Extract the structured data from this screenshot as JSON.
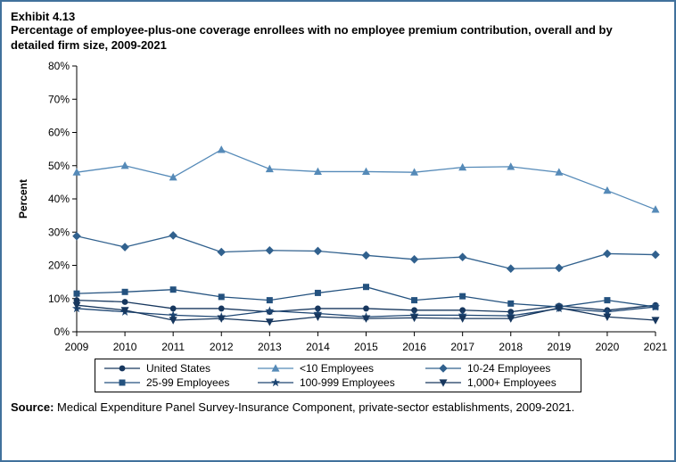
{
  "exhibit_label": "Exhibit 4.13",
  "chart_data": {
    "type": "line",
    "title": "Percentage of employee-plus-one coverage enrollees with no employee premium contribution, overall and by detailed firm size, 2009-2021",
    "x": [
      2009,
      2010,
      2011,
      2012,
      2013,
      2014,
      2015,
      2016,
      2017,
      2018,
      2019,
      2020,
      2021
    ],
    "xlabel": "",
    "ylabel": "Percent",
    "ylim": [
      0,
      80
    ],
    "ytick_step": 10,
    "ytick_format": "percent",
    "grid": false,
    "legend_position": "bottom",
    "series": [
      {
        "name": "United States",
        "marker": "circle",
        "color": "#17375e",
        "values": [
          9.5,
          9.0,
          7.0,
          7.0,
          6.0,
          7.0,
          7.0,
          6.5,
          6.5,
          6.0,
          7.8,
          6.5,
          8.0
        ]
      },
      {
        "name": "<10 Employees",
        "marker": "triangle-up",
        "color": "#558ab8",
        "values": [
          48.0,
          50.0,
          46.5,
          54.8,
          49.0,
          48.2,
          48.2,
          48.0,
          49.5,
          49.7,
          48.0,
          42.5,
          36.8
        ]
      },
      {
        "name": "10-24 Employees",
        "marker": "diamond",
        "color": "#31618e",
        "values": [
          28.8,
          25.5,
          29.0,
          24.0,
          24.5,
          24.3,
          23.0,
          21.8,
          22.5,
          19.0,
          19.2,
          23.5,
          23.2
        ]
      },
      {
        "name": "25-99 Employees",
        "marker": "square",
        "color": "#24527f",
        "values": [
          11.5,
          12.0,
          12.7,
          10.5,
          9.5,
          11.7,
          13.5,
          9.5,
          10.7,
          8.5,
          7.5,
          9.5,
          7.5
        ]
      },
      {
        "name": "100-999 Employees",
        "marker": "star",
        "color": "#1d4572",
        "values": [
          7.0,
          6.0,
          5.0,
          4.5,
          6.3,
          5.5,
          4.5,
          5.0,
          5.0,
          4.8,
          7.0,
          6.0,
          7.5
        ]
      },
      {
        "name": "1,000+ Employees",
        "marker": "triangle-down",
        "color": "#17375e",
        "values": [
          8.0,
          6.5,
          3.5,
          4.0,
          3.0,
          4.5,
          4.0,
          4.2,
          4.0,
          4.0,
          7.2,
          4.5,
          3.5
        ]
      }
    ]
  },
  "source": {
    "prefix": "Source:",
    "text": " Medical Expenditure Panel Survey-Insurance Component, private-sector establishments, 2009-2021."
  }
}
